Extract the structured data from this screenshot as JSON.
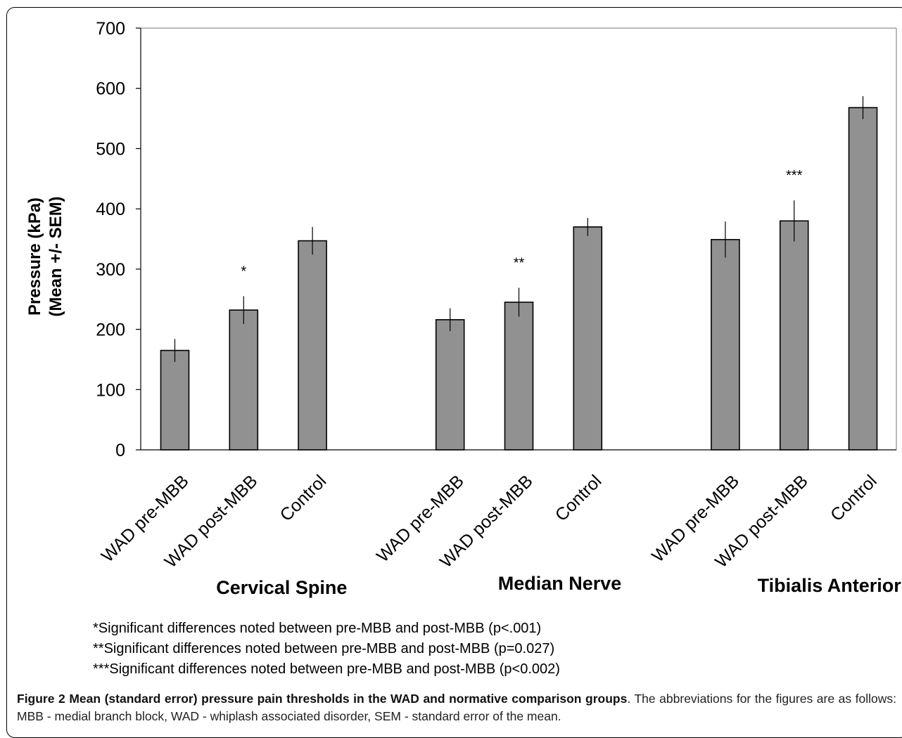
{
  "chart_data": {
    "type": "bar",
    "title": "",
    "ylabel_lines": [
      "Pressure (kPa)",
      "(Mean +/- SEM)"
    ],
    "ylim": [
      0,
      700
    ],
    "yticks": [
      0,
      100,
      200,
      300,
      400,
      500,
      600,
      700
    ],
    "bar_color": "#919191",
    "groups": [
      {
        "name": "Cervical Spine",
        "bars": [
          {
            "category": "WAD pre-MBB",
            "value": 165,
            "sem": 19,
            "sig": ""
          },
          {
            "category": "WAD post-MBB",
            "value": 232,
            "sem": 23,
            "sig": "*"
          },
          {
            "category": "Control",
            "value": 347,
            "sem": 23,
            "sig": ""
          }
        ]
      },
      {
        "name": "Median Nerve",
        "bars": [
          {
            "category": "WAD pre-MBB",
            "value": 216,
            "sem": 19,
            "sig": ""
          },
          {
            "category": "WAD post-MBB",
            "value": 245,
            "sem": 24,
            "sig": "**"
          },
          {
            "category": "Control",
            "value": 370,
            "sem": 15,
            "sig": ""
          }
        ]
      },
      {
        "name": "Tibialis Anterior",
        "bars": [
          {
            "category": "WAD pre-MBB",
            "value": 349,
            "sem": 30,
            "sig": ""
          },
          {
            "category": "WAD post-MBB",
            "value": 380,
            "sem": 34,
            "sig": "***"
          },
          {
            "category": "Control",
            "value": 568,
            "sem": 19,
            "sig": ""
          }
        ]
      }
    ]
  },
  "footnotes": [
    "*Significant differences noted between pre-MBB and post-MBB (p<.001)",
    "**Significant differences noted between pre-MBB and post-MBB (p=0.027)",
    "***Significant differences noted between pre-MBB and post-MBB (p<0.002)"
  ],
  "caption": {
    "bold": "Figure 2 Mean (standard error) pressure pain thresholds in the WAD and normative comparison groups",
    "text": ". The abbreviations for the figures are as follows: MBB - medial branch block, WAD - whiplash associated disorder, SEM - standard error of the mean."
  }
}
